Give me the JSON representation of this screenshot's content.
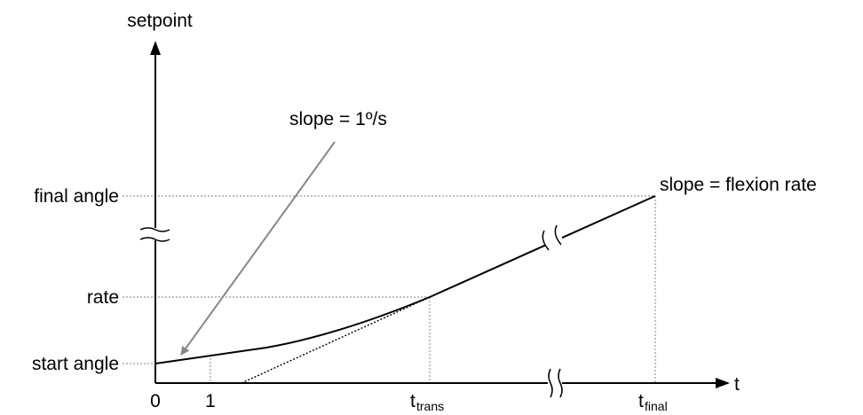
{
  "colors": {
    "background": "#ffffff",
    "ink": "#000000",
    "guide": "#999999",
    "arrow": "#888888"
  },
  "axes": {
    "y_label": "setpoint",
    "x_label": "t"
  },
  "y_ticks": {
    "final": "final angle",
    "rate": "rate",
    "start": "start angle"
  },
  "x_ticks": {
    "zero": "0",
    "one": "1",
    "trans_main": "t",
    "trans_sub": "trans",
    "final_main": "t",
    "final_sub": "final"
  },
  "annotations": {
    "slope_initial": "slope = 1º/s",
    "slope_final": "slope = flexion rate"
  },
  "icons": {
    "axis_break": "axis-break-icon",
    "line_break": "line-break-icon",
    "arrowhead": "arrowhead-icon"
  }
}
